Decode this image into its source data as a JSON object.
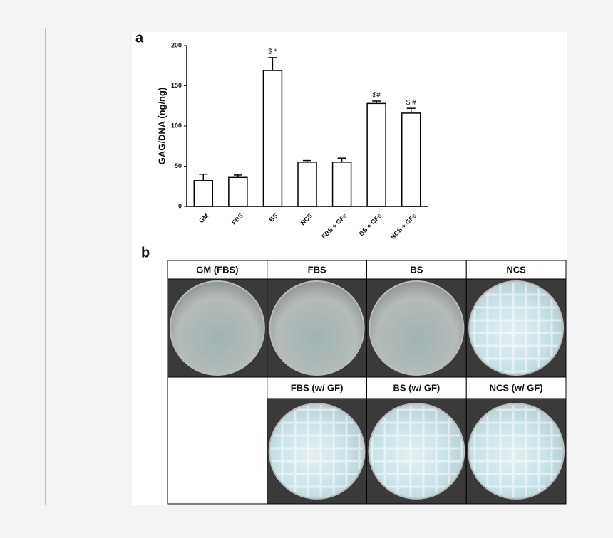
{
  "chart_data": {
    "type": "bar",
    "panel_label": "a",
    "ylabel": "GAG/DNA (ng/ng)",
    "categories": [
      "GM",
      "FBS",
      "BS",
      "NCS",
      "FBS + GFs",
      "BS + GFs",
      "NCS + GFs"
    ],
    "values": [
      32,
      36,
      169,
      55,
      55,
      128,
      116
    ],
    "errors": [
      8,
      3,
      16,
      2,
      5,
      3,
      6
    ],
    "annotations": [
      {
        "category": "BS",
        "text": "$ *"
      },
      {
        "category": "BS + GFs",
        "text": "$#"
      },
      {
        "category": "NCS + GFs",
        "text": "$ #"
      }
    ],
    "color": "#ffffff",
    "ylim": [
      0,
      200
    ],
    "yticks": [
      0,
      50,
      100,
      150,
      200
    ]
  },
  "panel_b": {
    "label": "b",
    "rows": [
      [
        "GM (FBS)",
        "FBS",
        "BS",
        "NCS"
      ],
      [
        null,
        "FBS (w/ GF)",
        "BS (w/ GF)",
        "NCS (w/ GF)"
      ]
    ]
  }
}
